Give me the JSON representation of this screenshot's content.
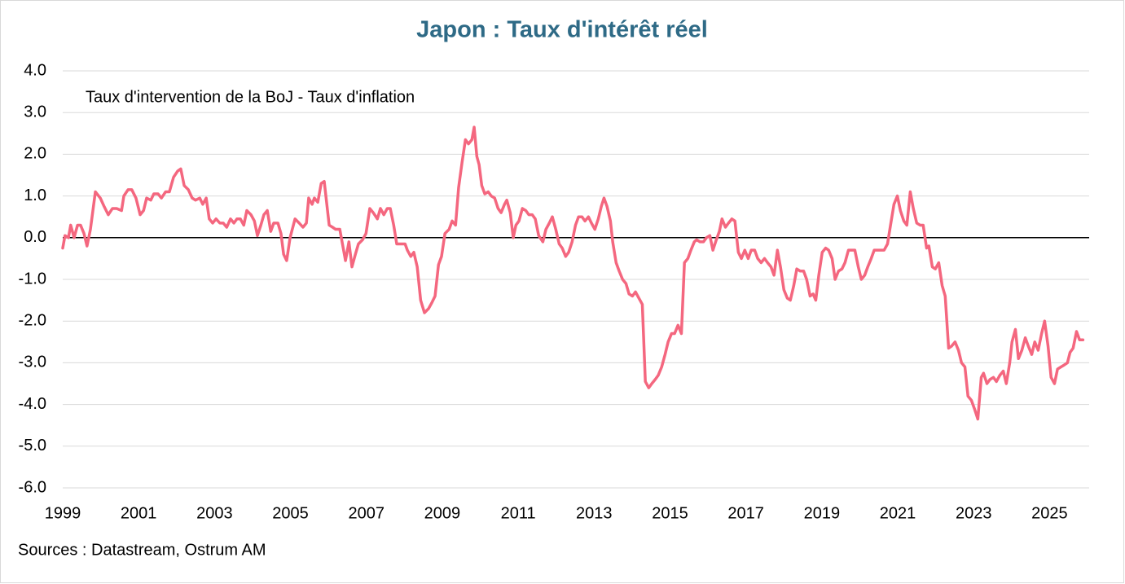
{
  "chart_data": {
    "type": "line",
    "title": "Japon : Taux d'intérêt réel",
    "annotation": "Taux d'intervention de la BoJ - Taux d'inflation",
    "source": "Sources : Datastream, Ostrum AM",
    "color": "#f4677f",
    "x": [
      1999.0,
      1999.06,
      1999.15,
      1999.21,
      1999.3,
      1999.39,
      1999.47,
      1999.56,
      1999.64,
      1999.73,
      1999.86,
      1999.99,
      2000.09,
      2000.2,
      2000.31,
      2000.42,
      2000.55,
      2000.61,
      2000.72,
      2000.82,
      2000.93,
      2001.04,
      2001.13,
      2001.21,
      2001.32,
      2001.4,
      2001.51,
      2001.6,
      2001.71,
      2001.81,
      2001.92,
      2002.03,
      2002.11,
      2002.2,
      2002.31,
      2002.41,
      2002.5,
      2002.61,
      2002.69,
      2002.78,
      2002.86,
      2002.95,
      2003.04,
      2003.14,
      2003.23,
      2003.32,
      2003.42,
      2003.51,
      2003.59,
      2003.68,
      2003.77,
      2003.85,
      2003.96,
      2004.05,
      2004.13,
      2004.22,
      2004.3,
      2004.39,
      2004.48,
      2004.56,
      2004.67,
      2004.75,
      2004.82,
      2004.9,
      2004.99,
      2005.12,
      2005.23,
      2005.33,
      2005.42,
      2005.48,
      2005.57,
      2005.63,
      2005.72,
      2005.81,
      2005.89,
      2006.02,
      2006.11,
      2006.19,
      2006.3,
      2006.36,
      2006.45,
      2006.54,
      2006.62,
      2006.71,
      2006.79,
      2006.9,
      2006.99,
      2007.09,
      2007.18,
      2007.29,
      2007.37,
      2007.46,
      2007.55,
      2007.63,
      2007.72,
      2007.8,
      2007.91,
      2008.02,
      2008.08,
      2008.17,
      2008.25,
      2008.34,
      2008.43,
      2008.53,
      2008.64,
      2008.73,
      2008.81,
      2008.9,
      2008.98,
      2009.07,
      2009.18,
      2009.26,
      2009.35,
      2009.43,
      2009.52,
      2009.61,
      2009.69,
      2009.78,
      2009.84,
      2009.91,
      2009.97,
      2010.04,
      2010.12,
      2010.21,
      2010.29,
      2010.38,
      2010.47,
      2010.55,
      2010.64,
      2010.7,
      2010.79,
      2010.87,
      2010.94,
      2011.02,
      2011.11,
      2011.2,
      2011.28,
      2011.37,
      2011.45,
      2011.54,
      2011.65,
      2011.73,
      2011.82,
      2011.9,
      2011.99,
      2012.08,
      2012.16,
      2012.25,
      2012.33,
      2012.42,
      2012.51,
      2012.59,
      2012.68,
      2012.76,
      2012.85,
      2012.93,
      2013.02,
      2013.11,
      2013.19,
      2013.26,
      2013.34,
      2013.43,
      2013.49,
      2013.58,
      2013.66,
      2013.75,
      2013.84,
      2013.92,
      2014.01,
      2014.09,
      2014.18,
      2014.27,
      2014.35,
      2014.44,
      2014.52,
      2014.61,
      2014.69,
      2014.78,
      2014.87,
      2014.95,
      2015.04,
      2015.12,
      2015.21,
      2015.3,
      2015.38,
      2015.47,
      2015.55,
      2015.64,
      2015.7,
      2015.79,
      2015.88,
      2015.96,
      2016.05,
      2016.13,
      2016.22,
      2016.3,
      2016.37,
      2016.46,
      2016.54,
      2016.63,
      2016.71,
      2016.8,
      2016.88,
      2016.97,
      2017.06,
      2017.14,
      2017.23,
      2017.31,
      2017.4,
      2017.49,
      2017.57,
      2017.66,
      2017.74,
      2017.83,
      2017.91,
      2018.0,
      2018.09,
      2018.17,
      2018.26,
      2018.34,
      2018.43,
      2018.52,
      2018.6,
      2018.69,
      2018.77,
      2018.84,
      2018.92,
      2019.01,
      2019.1,
      2019.18,
      2019.27,
      2019.35,
      2019.44,
      2019.53,
      2019.61,
      2019.7,
      2019.78,
      2019.87,
      2019.96,
      2020.04,
      2020.13,
      2020.21,
      2020.3,
      2020.38,
      2020.47,
      2020.56,
      2020.64,
      2020.73,
      2020.81,
      2020.9,
      2020.99,
      2021.07,
      2021.16,
      2021.24,
      2021.33,
      2021.41,
      2021.5,
      2021.59,
      2021.67,
      2021.76,
      2021.82,
      2021.91,
      2021.99,
      2022.08,
      2022.17,
      2022.25,
      2022.34,
      2022.42,
      2022.51,
      2022.6,
      2022.68,
      2022.77,
      2022.85,
      2022.94,
      2023.02,
      2023.11,
      2023.2,
      2023.26,
      2023.35,
      2023.43,
      2023.52,
      2023.6,
      2023.69,
      2023.78,
      2023.86,
      2023.95,
      2024.01,
      2024.1,
      2024.18,
      2024.27,
      2024.36,
      2024.44,
      2024.53,
      2024.61,
      2024.7,
      2024.79,
      2024.87,
      2024.96,
      2025.04,
      2025.13,
      2025.21,
      2025.3,
      2025.39,
      2025.47,
      2025.54,
      2025.62,
      2025.71,
      2025.79,
      2025.88
    ],
    "values": [
      -0.25,
      0.05,
      0.0,
      0.3,
      0.0,
      0.3,
      0.3,
      0.1,
      -0.2,
      0.2,
      1.1,
      0.95,
      0.75,
      0.55,
      0.7,
      0.7,
      0.65,
      1.0,
      1.15,
      1.15,
      0.95,
      0.55,
      0.65,
      0.95,
      0.9,
      1.05,
      1.05,
      0.95,
      1.1,
      1.1,
      1.45,
      1.6,
      1.65,
      1.25,
      1.15,
      0.95,
      0.9,
      0.95,
      0.8,
      0.95,
      0.45,
      0.35,
      0.45,
      0.35,
      0.35,
      0.25,
      0.45,
      0.35,
      0.45,
      0.45,
      0.3,
      0.65,
      0.55,
      0.4,
      0.05,
      0.3,
      0.55,
      0.65,
      0.15,
      0.35,
      0.35,
      0.1,
      -0.4,
      -0.55,
      0.0,
      0.45,
      0.35,
      0.25,
      0.35,
      0.95,
      0.8,
      0.95,
      0.85,
      1.3,
      1.35,
      0.3,
      0.25,
      0.2,
      0.2,
      -0.1,
      -0.55,
      -0.1,
      -0.7,
      -0.4,
      -0.15,
      -0.05,
      0.1,
      0.7,
      0.6,
      0.45,
      0.7,
      0.55,
      0.7,
      0.7,
      0.3,
      -0.15,
      -0.15,
      -0.15,
      -0.3,
      -0.45,
      -0.35,
      -0.7,
      -1.5,
      -1.8,
      -1.7,
      -1.55,
      -1.4,
      -0.65,
      -0.45,
      0.1,
      0.2,
      0.4,
      0.3,
      1.2,
      1.8,
      2.35,
      2.25,
      2.35,
      2.65,
      1.95,
      1.75,
      1.25,
      1.05,
      1.1,
      1.0,
      0.95,
      0.7,
      0.6,
      0.8,
      0.9,
      0.6,
      0.0,
      0.3,
      0.4,
      0.7,
      0.65,
      0.55,
      0.55,
      0.45,
      0.05,
      -0.1,
      0.2,
      0.35,
      0.5,
      0.2,
      -0.15,
      -0.25,
      -0.45,
      -0.35,
      -0.1,
      0.3,
      0.5,
      0.5,
      0.4,
      0.5,
      0.35,
      0.2,
      0.45,
      0.75,
      0.95,
      0.75,
      0.4,
      -0.1,
      -0.6,
      -0.8,
      -1.0,
      -1.1,
      -1.35,
      -1.4,
      -1.3,
      -1.45,
      -1.6,
      -3.45,
      -3.6,
      -3.5,
      -3.4,
      -3.3,
      -3.1,
      -2.8,
      -2.5,
      -2.3,
      -2.3,
      -2.1,
      -2.3,
      -0.6,
      -0.5,
      -0.3,
      -0.1,
      -0.05,
      -0.1,
      -0.1,
      0.0,
      0.05,
      -0.3,
      -0.05,
      0.15,
      0.45,
      0.25,
      0.35,
      0.45,
      0.4,
      -0.35,
      -0.5,
      -0.3,
      -0.5,
      -0.3,
      -0.3,
      -0.5,
      -0.6,
      -0.5,
      -0.6,
      -0.7,
      -0.9,
      -0.3,
      -0.7,
      -1.25,
      -1.45,
      -1.5,
      -1.15,
      -0.75,
      -0.8,
      -0.8,
      -1.0,
      -1.4,
      -1.35,
      -1.5,
      -0.9,
      -0.35,
      -0.25,
      -0.3,
      -0.5,
      -1.0,
      -0.8,
      -0.75,
      -0.6,
      -0.3,
      -0.3,
      -0.3,
      -0.7,
      -1.0,
      -0.9,
      -0.7,
      -0.5,
      -0.3,
      -0.3,
      -0.3,
      -0.3,
      -0.15,
      0.3,
      0.8,
      1.0,
      0.65,
      0.4,
      0.3,
      1.1,
      0.7,
      0.35,
      0.3,
      0.3,
      -0.25,
      -0.2,
      -0.7,
      -0.75,
      -0.6,
      -1.15,
      -1.4,
      -2.65,
      -2.6,
      -2.5,
      -2.7,
      -3.0,
      -3.1,
      -3.8,
      -3.9,
      -4.1,
      -4.35,
      -3.35,
      -3.25,
      -3.5,
      -3.4,
      -3.35,
      -3.45,
      -3.3,
      -3.2,
      -3.5,
      -3.0,
      -2.5,
      -2.2,
      -2.9,
      -2.7,
      -2.4,
      -2.6,
      -2.8,
      -2.5,
      -2.7,
      -2.3,
      -2.0,
      -2.6,
      -3.35,
      -3.5,
      -3.15,
      -3.1,
      -3.05,
      -3.0,
      -2.75,
      -2.65,
      -2.25,
      -2.45,
      -2.45
    ],
    "xlim": [
      1999,
      2026
    ],
    "xticks": [
      1999,
      2001,
      2003,
      2005,
      2007,
      2009,
      2011,
      2013,
      2015,
      2017,
      2019,
      2021,
      2023,
      2025
    ],
    "ylim": [
      -6,
      4
    ],
    "yticks": [
      {
        "value": -6,
        "label": "-6.0"
      },
      {
        "value": -5,
        "label": "-5.0"
      },
      {
        "value": -4,
        "label": "-4.0"
      },
      {
        "value": -3,
        "label": "-3.0"
      },
      {
        "value": -2,
        "label": "-2.0"
      },
      {
        "value": -1,
        "label": "-1.0"
      },
      {
        "value": 0,
        "label": "0.0"
      },
      {
        "value": 1,
        "label": "1.0"
      },
      {
        "value": 2,
        "label": "2.0"
      },
      {
        "value": 3,
        "label": "3.0"
      },
      {
        "value": 4,
        "label": "4.0"
      }
    ],
    "grid": true
  }
}
